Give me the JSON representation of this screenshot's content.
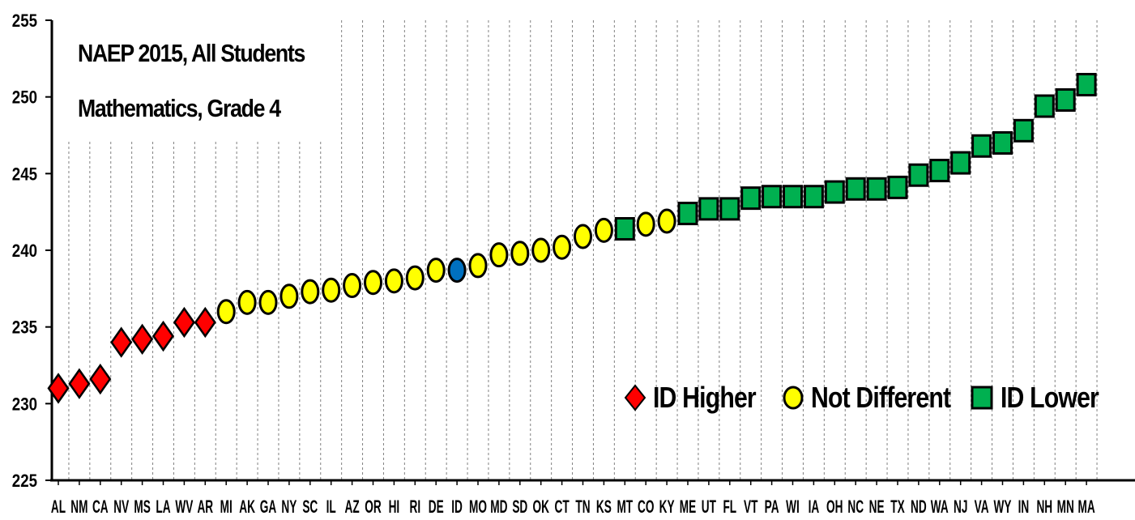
{
  "chart_data": {
    "type": "scatter",
    "title_line1": "NAEP 2015, All Students",
    "title_line2": "Mathematics, Grade 4",
    "ylim": [
      225,
      255
    ],
    "yticks": [
      225,
      230,
      235,
      240,
      245,
      250,
      255
    ],
    "grid": "vertical dashed",
    "legend_placement": "bottom-right",
    "categories": [
      "AL",
      "NM",
      "CA",
      "NV",
      "MS",
      "LA",
      "WV",
      "AR",
      "MI",
      "AK",
      "GA",
      "NY",
      "SC",
      "IL",
      "AZ",
      "OR",
      "HI",
      "RI",
      "DE",
      "ID",
      "MO",
      "MD",
      "SD",
      "OK",
      "CT",
      "TN",
      "KS",
      "MT",
      "CO",
      "KY",
      "ME",
      "UT",
      "FL",
      "VT",
      "PA",
      "WI",
      "IA",
      "OH",
      "NC",
      "NE",
      "TX",
      "ND",
      "WA",
      "NJ",
      "VA",
      "WY",
      "IN",
      "NH",
      "MN",
      "MA"
    ],
    "tick_labels": [
      "AL",
      "NM",
      "CA",
      "NV",
      "MS",
      "LA",
      "WV",
      "AR",
      "MI",
      "AK",
      "GA",
      "NY",
      "SC",
      "IL",
      "AZ",
      "OR",
      "HI",
      "RI",
      "DE",
      "ID",
      "MO",
      "MD",
      "SD",
      "OK",
      "CT",
      "TN",
      "KS",
      "MT",
      "CO",
      "KY",
      "ME",
      "UT",
      "FL",
      "VT",
      "PA",
      "WI",
      "IA",
      "OH",
      "NC",
      "NE",
      "TX",
      "ND",
      "WA",
      "NJ",
      "VA",
      "WY",
      "IN",
      "NH",
      "MN",
      "MA"
    ],
    "values": [
      231,
      231.3,
      231.6,
      234,
      234.2,
      234.4,
      235.3,
      235.3,
      236,
      236.6,
      236.6,
      237,
      237.3,
      237.4,
      237.7,
      237.9,
      238,
      238.2,
      238.7,
      238.7,
      239,
      239.7,
      239.8,
      240,
      240.2,
      240.9,
      241.3,
      241.4,
      241.7,
      241.9,
      242.4,
      242.7,
      242.7,
      243.4,
      243.5,
      243.5,
      243.5,
      243.8,
      244,
      244,
      244.1,
      244.9,
      245.2,
      245.7,
      246.8,
      247,
      247.8,
      249.4,
      249.8,
      250.8
    ],
    "groups": [
      "higher",
      "higher",
      "higher",
      "higher",
      "higher",
      "higher",
      "higher",
      "higher",
      "nd",
      "nd",
      "nd",
      "nd",
      "nd",
      "nd",
      "nd",
      "nd",
      "nd",
      "nd",
      "nd",
      "self",
      "nd",
      "nd",
      "nd",
      "nd",
      "nd",
      "nd",
      "nd",
      "lower",
      "nd",
      "nd",
      "lower",
      "lower",
      "lower",
      "lower",
      "lower",
      "lower",
      "lower",
      "lower",
      "lower",
      "lower",
      "lower",
      "lower",
      "lower",
      "lower",
      "lower",
      "lower",
      "lower",
      "lower",
      "lower",
      "lower"
    ],
    "legend": {
      "higher": "ID Higher",
      "nd": "Not Different",
      "lower": "ID Lower"
    },
    "colors": {
      "higher": "#ff0000",
      "nd": "#ffff00",
      "lower": "#00b050",
      "self": "#0070c0",
      "grid": "#808080",
      "axis": "#000000"
    }
  }
}
